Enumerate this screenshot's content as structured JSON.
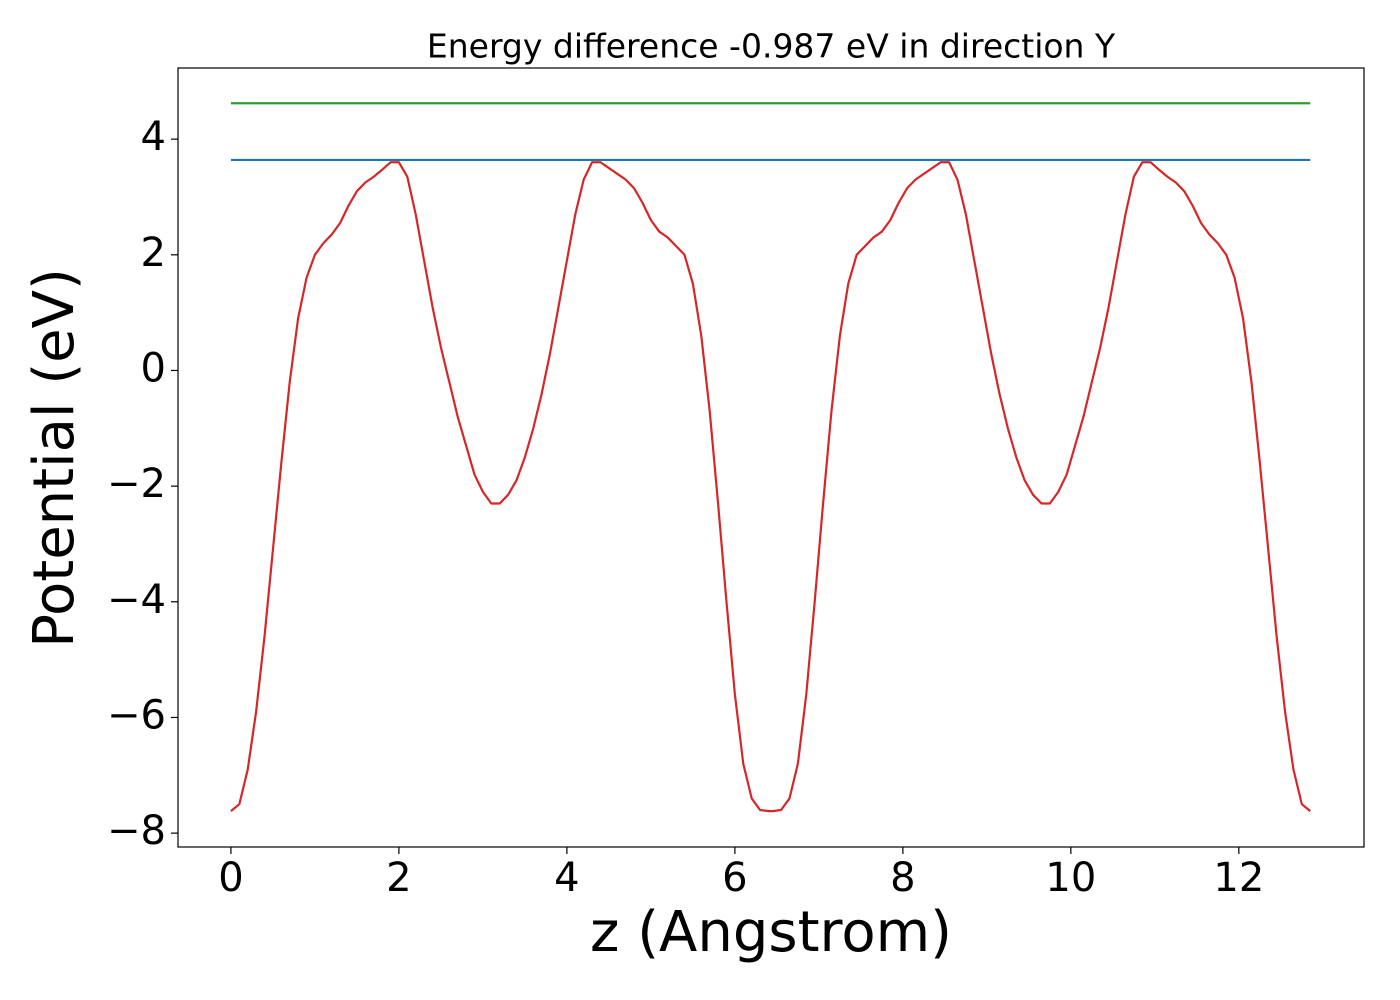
{
  "chart_data": {
    "type": "line",
    "title": "Energy difference -0.987 eV in direction Y",
    "xlabel": "z (Angstrom)",
    "ylabel": "Potential (eV)",
    "xlim": [
      -0.63,
      13.49
    ],
    "ylim": [
      -8.24,
      5.23
    ],
    "xticks": [
      0,
      2,
      4,
      6,
      8,
      10,
      12
    ],
    "yticks": [
      {
        "value": -8,
        "label": "−8"
      },
      {
        "value": -6,
        "label": "−6"
      },
      {
        "value": -4,
        "label": "−4"
      },
      {
        "value": -2,
        "label": "−2"
      },
      0,
      2,
      4
    ],
    "grid": false,
    "series": [
      {
        "color": "#d62728",
        "x": [
          0,
          0.1,
          0.2,
          0.3,
          0.4,
          0.5,
          0.6,
          0.7,
          0.8,
          0.9,
          1.0,
          1.1,
          1.2,
          1.3,
          1.4,
          1.5,
          1.6,
          1.7,
          1.8,
          1.9,
          2.0,
          2.1,
          2.2,
          2.3,
          2.4,
          2.5,
          2.6,
          2.7,
          2.8,
          2.9,
          3.0,
          3.1,
          3.2,
          3.3,
          3.4,
          3.5,
          3.6,
          3.7,
          3.8,
          3.9,
          4.0,
          4.1,
          4.2,
          4.3,
          4.4,
          4.5,
          4.6,
          4.7,
          4.8,
          4.9,
          5.0,
          5.1,
          5.2,
          5.3,
          5.4,
          5.5,
          5.6,
          5.7,
          5.8,
          5.9,
          6.0,
          6.1,
          6.2,
          6.3,
          6.4,
          6.45,
          6.55,
          6.65,
          6.75,
          6.85,
          6.95,
          7.05,
          7.15,
          7.25,
          7.35,
          7.45,
          7.55,
          7.65,
          7.75,
          7.85,
          7.95,
          8.05,
          8.15,
          8.25,
          8.35,
          8.45,
          8.55,
          8.65,
          8.75,
          8.85,
          8.95,
          9.05,
          9.15,
          9.25,
          9.35,
          9.45,
          9.55,
          9.65,
          9.75,
          9.85,
          9.95,
          10.05,
          10.15,
          10.25,
          10.35,
          10.45,
          10.55,
          10.65,
          10.75,
          10.85,
          10.95,
          11.05,
          11.15,
          11.25,
          11.35,
          11.45,
          11.55,
          11.65,
          11.75,
          11.85,
          11.95,
          12.05,
          12.15,
          12.25,
          12.35,
          12.45,
          12.55,
          12.65,
          12.75,
          12.85
        ],
        "values": [
          -7.62,
          -7.5,
          -6.9,
          -5.9,
          -4.6,
          -3.1,
          -1.6,
          -0.2,
          0.9,
          1.6,
          2.0,
          2.2,
          2.35,
          2.55,
          2.85,
          3.1,
          3.25,
          3.35,
          3.47,
          3.6,
          3.6,
          3.35,
          2.7,
          1.9,
          1.1,
          0.4,
          -0.2,
          -0.8,
          -1.3,
          -1.8,
          -2.1,
          -2.3,
          -2.3,
          -2.15,
          -1.9,
          -1.5,
          -1.0,
          -0.4,
          0.3,
          1.1,
          1.9,
          2.7,
          3.3,
          3.6,
          3.6,
          3.5,
          3.4,
          3.3,
          3.15,
          2.9,
          2.6,
          2.4,
          2.3,
          2.15,
          2.0,
          1.5,
          0.6,
          -0.7,
          -2.3,
          -4.0,
          -5.6,
          -6.8,
          -7.4,
          -7.6,
          -7.62,
          -7.62,
          -7.6,
          -7.4,
          -6.8,
          -5.6,
          -4.0,
          -2.3,
          -0.7,
          0.6,
          1.5,
          2.0,
          2.15,
          2.3,
          2.4,
          2.6,
          2.9,
          3.15,
          3.3,
          3.4,
          3.5,
          3.6,
          3.6,
          3.3,
          2.7,
          1.9,
          1.1,
          0.3,
          -0.4,
          -1.0,
          -1.5,
          -1.9,
          -2.15,
          -2.3,
          -2.3,
          -2.1,
          -1.8,
          -1.3,
          -0.8,
          -0.2,
          0.4,
          1.1,
          1.9,
          2.7,
          3.35,
          3.6,
          3.6,
          3.47,
          3.35,
          3.25,
          3.1,
          2.85,
          2.55,
          2.35,
          2.2,
          2.0,
          1.6,
          0.9,
          -0.2,
          -1.6,
          -3.1,
          -4.6,
          -5.9,
          -6.9,
          -7.5,
          -7.62
        ]
      },
      {
        "color": "#1f77b4",
        "x": [
          0,
          12.85
        ],
        "values": [
          3.64,
          3.64
        ]
      },
      {
        "color": "#2ca02c",
        "x": [
          0,
          12.85
        ],
        "values": [
          4.62,
          4.62
        ]
      }
    ]
  }
}
